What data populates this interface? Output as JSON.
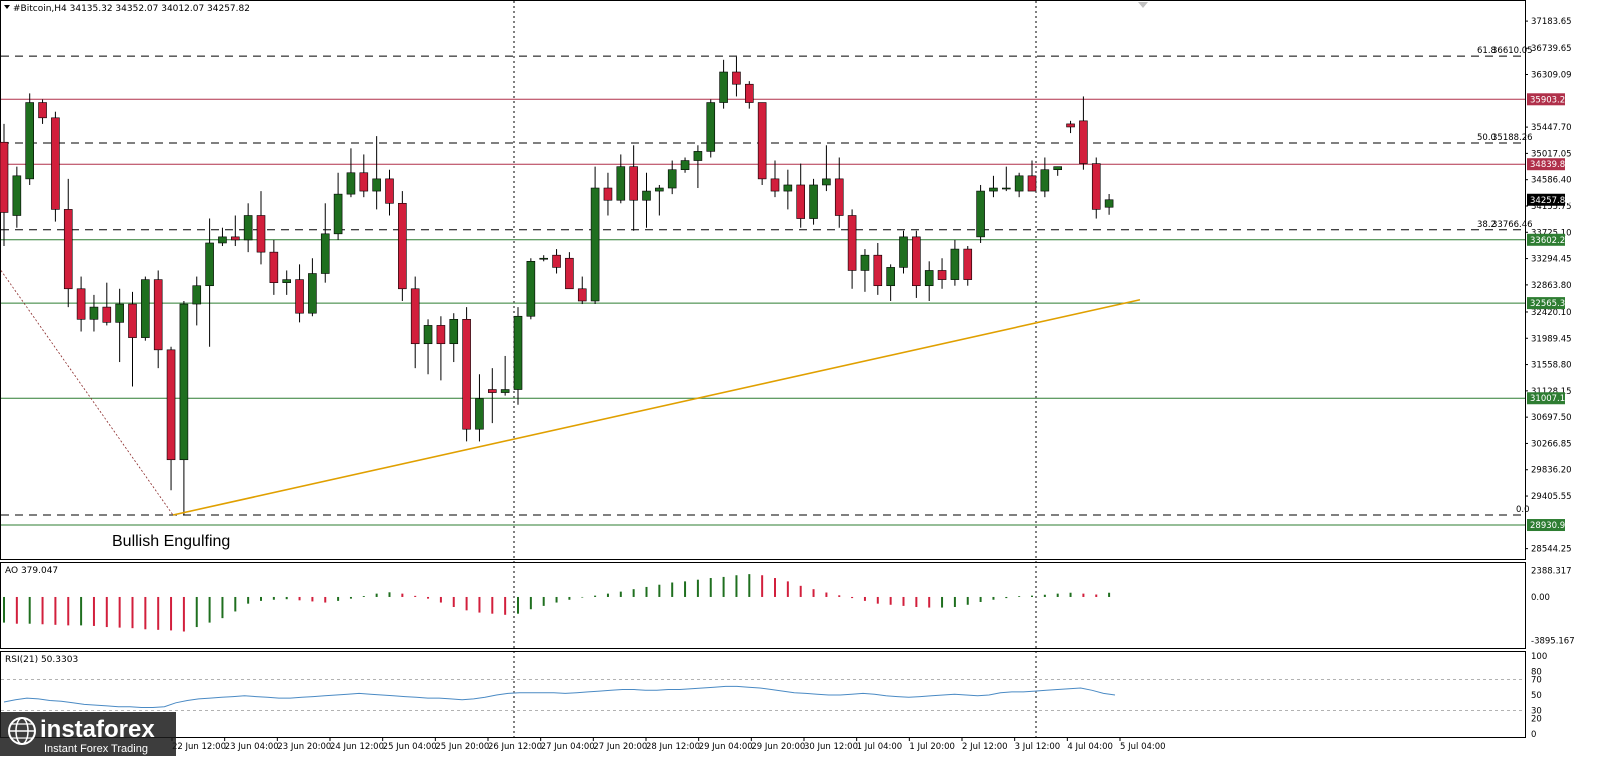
{
  "window": {
    "symbol_line": "#Bitcoin,H4  34135.32 34352.07 34012.07 34257.82",
    "ao_label": "AO 379.047",
    "rsi_label": "RSI(21) 50.3303"
  },
  "colors": {
    "bull": "#1f6f1f",
    "bear": "#d21f3c",
    "fib_dash": "#000000",
    "resistance": "#b0304a",
    "support": "#2e7d32",
    "trendline": "#e0a000",
    "rsi_line": "#4a8ac4",
    "current_price_tag": "#000000"
  },
  "chart_data": [
    {
      "type": "candlestick",
      "title": "#Bitcoin,H4",
      "ylim": [
        28440,
        37300
      ],
      "y_ticks": [
        "37183.65",
        "36739.65",
        "36309.09",
        "35447.70",
        "35017.05",
        "34586.40",
        "34155.75",
        "33725.10",
        "33294.45",
        "32863.80",
        "32420.10",
        "31989.45",
        "31558.80",
        "31128.15",
        "30697.50",
        "30266.85",
        "29836.20",
        "29405.55",
        "28544.25"
      ],
      "x_tick_labels": [
        "22 Jun 12:00",
        "23 Jun 04:00",
        "23 Jun 20:00",
        "24 Jun 12:00",
        "25 Jun 04:00",
        "25 Jun 20:00",
        "26 Jun 12:00",
        "27 Jun 04:00",
        "27 Jun 20:00",
        "28 Jun 12:00",
        "29 Jun 04:00",
        "29 Jun 20:00",
        "30 Jun 12:00",
        "1 Jul 04:00",
        "1 Jul 20:00",
        "2 Jul 12:00",
        "3 Jul 12:00",
        "4 Jul 04:00",
        "5 Jul 04:00"
      ],
      "candles": [
        {
          "o": 35200,
          "h": 35500,
          "l": 33500,
          "c": 34050
        },
        {
          "o": 34000,
          "h": 34800,
          "l": 33800,
          "c": 34650
        },
        {
          "o": 34600,
          "h": 36000,
          "l": 34500,
          "c": 35850
        },
        {
          "o": 35850,
          "h": 35900,
          "l": 35500,
          "c": 35600
        },
        {
          "o": 35600,
          "h": 35700,
          "l": 33900,
          "c": 34100
        },
        {
          "o": 34100,
          "h": 34600,
          "l": 32500,
          "c": 32800
        },
        {
          "o": 32800,
          "h": 33000,
          "l": 32100,
          "c": 32300
        },
        {
          "o": 32300,
          "h": 32700,
          "l": 32100,
          "c": 32500
        },
        {
          "o": 32500,
          "h": 32900,
          "l": 32200,
          "c": 32250
        },
        {
          "o": 32250,
          "h": 32800,
          "l": 31600,
          "c": 32550
        },
        {
          "o": 32550,
          "h": 32750,
          "l": 31200,
          "c": 32000
        },
        {
          "o": 32000,
          "h": 33000,
          "l": 31950,
          "c": 32950
        },
        {
          "o": 32950,
          "h": 33100,
          "l": 31500,
          "c": 31800
        },
        {
          "o": 31800,
          "h": 31850,
          "l": 29500,
          "c": 30000
        },
        {
          "o": 30000,
          "h": 32600,
          "l": 29100,
          "c": 32550
        },
        {
          "o": 32550,
          "h": 33000,
          "l": 32200,
          "c": 32850
        },
        {
          "o": 32850,
          "h": 33950,
          "l": 31850,
          "c": 33550
        },
        {
          "o": 33550,
          "h": 33800,
          "l": 33500,
          "c": 33650
        },
        {
          "o": 33650,
          "h": 34000,
          "l": 33500,
          "c": 33600
        },
        {
          "o": 33600,
          "h": 34200,
          "l": 33400,
          "c": 34000
        },
        {
          "o": 34000,
          "h": 34400,
          "l": 33200,
          "c": 33400
        },
        {
          "o": 33400,
          "h": 33600,
          "l": 32700,
          "c": 32900
        },
        {
          "o": 32900,
          "h": 33100,
          "l": 32700,
          "c": 32950
        },
        {
          "o": 32950,
          "h": 33200,
          "l": 32250,
          "c": 32400
        },
        {
          "o": 32400,
          "h": 33300,
          "l": 32350,
          "c": 33050
        },
        {
          "o": 33050,
          "h": 34200,
          "l": 32900,
          "c": 33700
        },
        {
          "o": 33700,
          "h": 34700,
          "l": 33600,
          "c": 34350
        },
        {
          "o": 34350,
          "h": 35100,
          "l": 34300,
          "c": 34700
        },
        {
          "o": 34700,
          "h": 35000,
          "l": 34300,
          "c": 34400
        },
        {
          "o": 34400,
          "h": 35300,
          "l": 34100,
          "c": 34600
        },
        {
          "o": 34600,
          "h": 34750,
          "l": 34000,
          "c": 34200
        },
        {
          "o": 34200,
          "h": 34400,
          "l": 32600,
          "c": 32800
        },
        {
          "o": 32800,
          "h": 33000,
          "l": 31500,
          "c": 31900
        },
        {
          "o": 31900,
          "h": 32300,
          "l": 31400,
          "c": 32200
        },
        {
          "o": 32200,
          "h": 32350,
          "l": 31300,
          "c": 31900
        },
        {
          "o": 31900,
          "h": 32400,
          "l": 31600,
          "c": 32300
        },
        {
          "o": 32300,
          "h": 32500,
          "l": 30300,
          "c": 30500
        },
        {
          "o": 30500,
          "h": 31400,
          "l": 30300,
          "c": 31000
        },
        {
          "o": 31150,
          "h": 31500,
          "l": 30600,
          "c": 31100
        },
        {
          "o": 31100,
          "h": 31700,
          "l": 31050,
          "c": 31150
        },
        {
          "o": 31150,
          "h": 32500,
          "l": 30900,
          "c": 32350
        },
        {
          "o": 32350,
          "h": 33300,
          "l": 32300,
          "c": 33250
        },
        {
          "o": 33300,
          "h": 33350,
          "l": 33250,
          "c": 33300
        },
        {
          "o": 33350,
          "h": 33450,
          "l": 33050,
          "c": 33150
        },
        {
          "o": 33300,
          "h": 33400,
          "l": 32800,
          "c": 32800
        },
        {
          "o": 32800,
          "h": 33000,
          "l": 32550,
          "c": 32600
        },
        {
          "o": 32600,
          "h": 34800,
          "l": 32550,
          "c": 34450
        },
        {
          "o": 34450,
          "h": 34700,
          "l": 34000,
          "c": 34250
        },
        {
          "o": 34250,
          "h": 35000,
          "l": 34200,
          "c": 34800
        },
        {
          "o": 34800,
          "h": 35150,
          "l": 33750,
          "c": 34250
        },
        {
          "o": 34250,
          "h": 34700,
          "l": 33800,
          "c": 34400
        },
        {
          "o": 34400,
          "h": 34500,
          "l": 34000,
          "c": 34450
        },
        {
          "o": 34450,
          "h": 34900,
          "l": 34350,
          "c": 34750
        },
        {
          "o": 34750,
          "h": 34950,
          "l": 34700,
          "c": 34900
        },
        {
          "o": 34900,
          "h": 35150,
          "l": 34450,
          "c": 35050
        },
        {
          "o": 35050,
          "h": 35900,
          "l": 34950,
          "c": 35850
        },
        {
          "o": 35850,
          "h": 36550,
          "l": 35750,
          "c": 36350
        },
        {
          "o": 36350,
          "h": 36600,
          "l": 35950,
          "c": 36150
        },
        {
          "o": 36150,
          "h": 36200,
          "l": 35750,
          "c": 35850
        },
        {
          "o": 35850,
          "h": 35850,
          "l": 34500,
          "c": 34600
        },
        {
          "o": 34600,
          "h": 34900,
          "l": 34300,
          "c": 34400
        },
        {
          "o": 34400,
          "h": 34750,
          "l": 34100,
          "c": 34500
        },
        {
          "o": 34500,
          "h": 34850,
          "l": 33800,
          "c": 33950
        },
        {
          "o": 33950,
          "h": 34600,
          "l": 33850,
          "c": 34500
        },
        {
          "o": 34500,
          "h": 35150,
          "l": 34400,
          "c": 34600
        },
        {
          "o": 34600,
          "h": 34950,
          "l": 33800,
          "c": 34000
        },
        {
          "o": 34000,
          "h": 34100,
          "l": 32800,
          "c": 33100
        },
        {
          "o": 33100,
          "h": 33450,
          "l": 32750,
          "c": 33350
        },
        {
          "o": 33350,
          "h": 33550,
          "l": 32700,
          "c": 32850
        },
        {
          "o": 32850,
          "h": 33200,
          "l": 32600,
          "c": 33150
        },
        {
          "o": 33150,
          "h": 33750,
          "l": 33050,
          "c": 33650
        },
        {
          "o": 33650,
          "h": 33750,
          "l": 32650,
          "c": 32850
        },
        {
          "o": 32850,
          "h": 33250,
          "l": 32600,
          "c": 33100
        },
        {
          "o": 33100,
          "h": 33300,
          "l": 32800,
          "c": 32950
        },
        {
          "o": 32950,
          "h": 33600,
          "l": 32850,
          "c": 33450
        },
        {
          "o": 33450,
          "h": 33500,
          "l": 32850,
          "c": 32950
        },
        {
          "o": 33650,
          "h": 34500,
          "l": 33550,
          "c": 34400
        },
        {
          "o": 34400,
          "h": 34650,
          "l": 34300,
          "c": 34450
        },
        {
          "o": 34450,
          "h": 34800,
          "l": 34400,
          "c": 34450
        },
        {
          "o": 34400,
          "h": 34700,
          "l": 34300,
          "c": 34650
        },
        {
          "o": 34650,
          "h": 34900,
          "l": 34450,
          "c": 34400
        },
        {
          "o": 34400,
          "h": 34950,
          "l": 34300,
          "c": 34750
        },
        {
          "o": 34750,
          "h": 34800,
          "l": 34650,
          "c": 34800
        },
        {
          "o": 35500,
          "h": 35550,
          "l": 35350,
          "c": 35450
        },
        {
          "o": 35550,
          "h": 35950,
          "l": 34750,
          "c": 34850
        },
        {
          "o": 34850,
          "h": 34950,
          "l": 33950,
          "c": 34100
        },
        {
          "o": 34135.32,
          "h": 34352.07,
          "l": 34012.07,
          "c": 34257.82
        }
      ],
      "horizontal_levels": [
        {
          "label": "61.8",
          "value": 36610.05,
          "style": "fib"
        },
        {
          "label": "50.0",
          "value": 35188.26,
          "style": "fib"
        },
        {
          "label": "38.2",
          "value": 33766.46,
          "style": "fib"
        },
        {
          "label": "0.0",
          "value": 29095.0,
          "style": "fib"
        },
        {
          "label": "",
          "value": 35903.24,
          "style": "resistance"
        },
        {
          "label": "",
          "value": 34839.84,
          "style": "resistance"
        },
        {
          "label": "",
          "value": 33602.26,
          "style": "support"
        },
        {
          "label": "",
          "value": 32565.34,
          "style": "support"
        },
        {
          "label": "",
          "value": 31007.14,
          "style": "support"
        },
        {
          "label": "",
          "value": 28930.91,
          "style": "support"
        }
      ],
      "price_tags": [
        {
          "text": "36610.05",
          "value": 36610.05,
          "style": "plain"
        },
        {
          "text": "35903.24",
          "value": 35903.24,
          "style": "resistance"
        },
        {
          "text": "35188.26",
          "value": 35188.26,
          "style": "plain"
        },
        {
          "text": "34839.84",
          "value": 34839.84,
          "style": "resistance"
        },
        {
          "text": "34257.82",
          "value": 34257.82,
          "style": "current"
        },
        {
          "text": "33766.46",
          "value": 33766.46,
          "style": "plain"
        },
        {
          "text": "33602.26",
          "value": 33602.26,
          "style": "support"
        },
        {
          "text": "32565.34",
          "value": 32565.34,
          "style": "support"
        },
        {
          "text": "31007.14",
          "value": 31007.14,
          "style": "support"
        },
        {
          "text": "28930.91",
          "value": 28930.91,
          "style": "support"
        }
      ],
      "annotation": "Bullish Engulfing"
    },
    {
      "type": "bar",
      "title": "AO 379.047",
      "ylim": [
        -4400,
        2600
      ],
      "y_ticks": [
        "2388.317",
        "0.00",
        "-3895.167"
      ],
      "values": [
        -2300,
        -2400,
        -2400,
        -2450,
        -2500,
        -2550,
        -2550,
        -2600,
        -2700,
        -2750,
        -2800,
        -2900,
        -2950,
        -3000,
        -3100,
        -2700,
        -2300,
        -1900,
        -1300,
        -600,
        -350,
        -250,
        -200,
        -300,
        -400,
        -500,
        -350,
        -150,
        80,
        300,
        420,
        300,
        100,
        -150,
        -500,
        -900,
        -1200,
        -1400,
        -1500,
        -1600,
        -1500,
        -1100,
        -800,
        -500,
        -250,
        -50,
        120,
        300,
        480,
        700,
        900,
        1100,
        1300,
        1400,
        1550,
        1700,
        1800,
        1950,
        2050,
        1950,
        1700,
        1400,
        1000,
        700,
        400,
        150,
        -100,
        -350,
        -600,
        -700,
        -800,
        -900,
        -950,
        -950,
        -900,
        -700,
        -450,
        -250,
        -100,
        70,
        120,
        200,
        300,
        380,
        300,
        220,
        379
      ]
    },
    {
      "type": "line",
      "title": "RSI(21) 50.3303",
      "ylim": [
        0,
        100
      ],
      "y_ticks": [
        "100",
        "80",
        "70",
        "50",
        "30",
        "20",
        "0"
      ],
      "levels": [
        70,
        30
      ],
      "values": [
        41,
        44,
        46,
        45,
        43,
        42,
        40,
        38,
        37,
        36,
        35,
        35,
        34,
        34,
        35,
        40,
        43,
        45,
        46,
        47,
        48,
        49,
        48,
        47,
        46,
        46,
        47,
        48,
        49,
        50,
        51,
        52,
        51,
        50,
        49,
        48,
        47,
        46,
        46,
        45,
        44,
        45,
        47,
        50,
        52,
        53,
        53,
        53,
        53,
        52,
        53,
        54,
        55,
        56,
        57,
        57,
        56,
        56,
        57,
        57,
        58,
        59,
        60,
        61,
        61,
        60,
        59,
        57,
        55,
        53,
        52,
        51,
        50,
        50,
        51,
        52,
        51,
        49,
        48,
        47,
        48,
        49,
        50,
        51,
        50,
        49,
        50,
        53,
        54,
        54,
        55,
        56,
        57,
        58,
        59,
        56,
        52,
        50
      ]
    }
  ],
  "logo": {
    "name": "instaforex",
    "tagline": "Instant Forex Trading"
  }
}
